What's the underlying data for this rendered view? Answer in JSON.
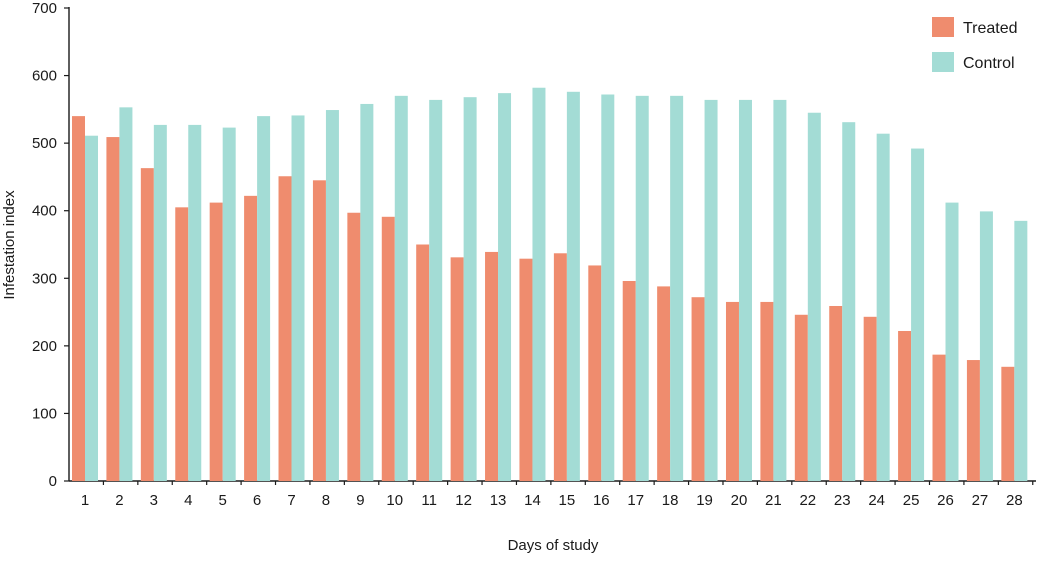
{
  "chart_data": {
    "type": "bar",
    "title": "",
    "xlabel": "Days of study",
    "ylabel": "Infestation index",
    "ylim": [
      0,
      700
    ],
    "yticks": [
      0,
      100,
      200,
      300,
      400,
      500,
      600,
      700
    ],
    "grid": false,
    "legend_position": "top-right",
    "categories": [
      "1",
      "2",
      "3",
      "4",
      "5",
      "6",
      "7",
      "8",
      "9",
      "10",
      "11",
      "12",
      "13",
      "14",
      "15",
      "16",
      "17",
      "18",
      "19",
      "20",
      "21",
      "22",
      "23",
      "24",
      "25",
      "26",
      "27",
      "28"
    ],
    "series": [
      {
        "name": "Treated",
        "color": "#EF8C6E",
        "values": [
          540,
          509,
          463,
          405,
          412,
          422,
          451,
          445,
          397,
          391,
          350,
          331,
          339,
          329,
          337,
          319,
          296,
          288,
          272,
          265,
          265,
          246,
          259,
          243,
          222,
          187,
          179,
          169
        ]
      },
      {
        "name": "Control",
        "color": "#A3DCD5",
        "values": [
          511,
          553,
          527,
          527,
          523,
          540,
          541,
          549,
          558,
          570,
          564,
          568,
          574,
          582,
          576,
          572,
          570,
          570,
          564,
          564,
          564,
          545,
          531,
          514,
          492,
          412,
          399,
          385
        ]
      }
    ]
  }
}
